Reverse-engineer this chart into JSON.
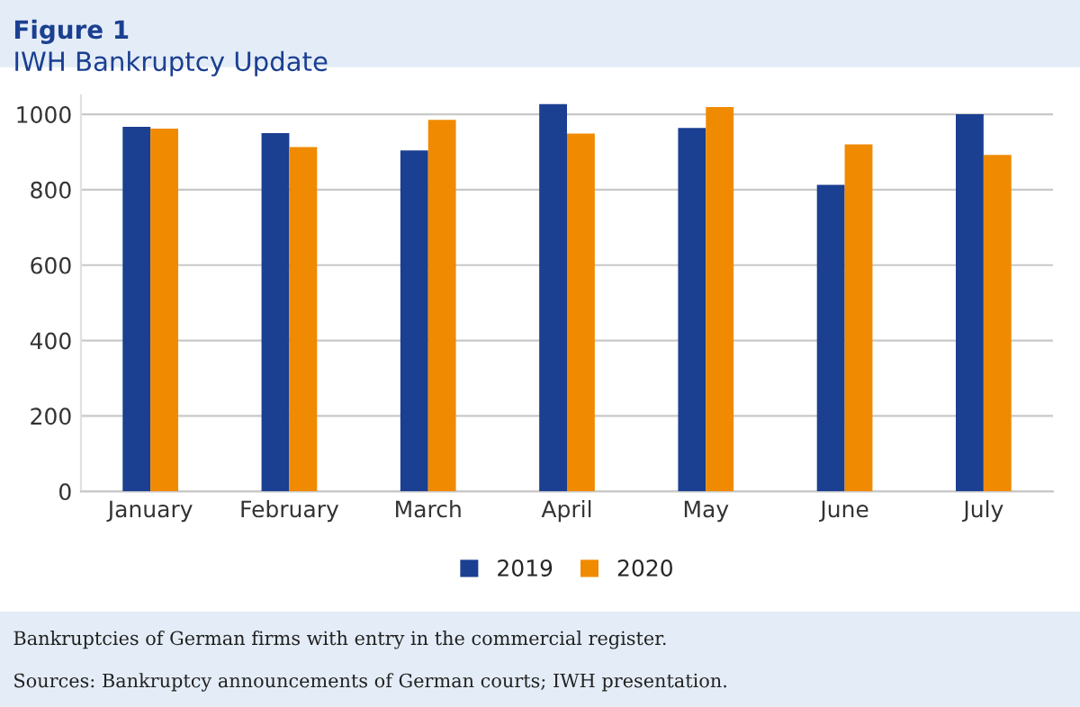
{
  "chart_data": {
    "type": "bar",
    "title": "Figure 1",
    "subtitle": "IWH Bankruptcy Update",
    "categories": [
      "January",
      "February",
      "March",
      "April",
      "May",
      "June",
      "July"
    ],
    "series": [
      {
        "name": "2019",
        "color": "#1b3f91",
        "values": [
          967,
          950,
          904,
          1027,
          964,
          813,
          1000
        ]
      },
      {
        "name": "2020",
        "color": "#f08a00",
        "values": [
          962,
          913,
          985,
          949,
          1019,
          920,
          892
        ]
      }
    ],
    "ylim": [
      0,
      1050
    ],
    "yticks": [
      0,
      200,
      400,
      600,
      800,
      1000
    ],
    "grid": "y",
    "legend": "bottom",
    "annotations": [
      "Bankruptcies of German firms with entry in the commercial register.",
      "Sources: Bankruptcy announcements of German courts; IWH presentation."
    ]
  }
}
